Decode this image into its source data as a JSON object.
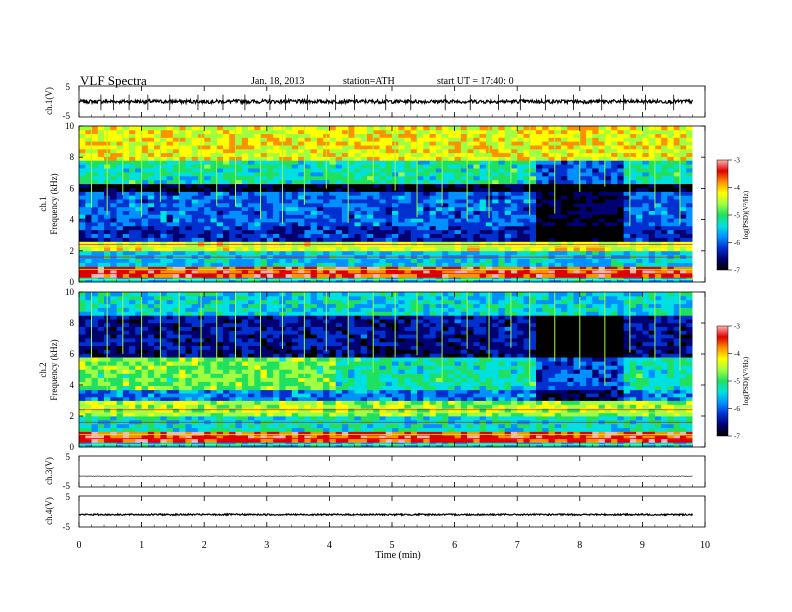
{
  "header": {
    "title": "VLF  Spectra",
    "date": "Jan. 18, 2013",
    "station": "station=ATH",
    "start": "start  UT  =    17:40: 0"
  },
  "colors": {
    "colormap": [
      "#000000",
      "#000070",
      "#0030d0",
      "#0090ff",
      "#00e0e0",
      "#20e060",
      "#a0ff40",
      "#ffff00",
      "#ff9000",
      "#e00000",
      "#ffb0b0"
    ],
    "trace": "#000000",
    "frame": "#000000",
    "background": "#ffffff"
  },
  "chart_data": [
    {
      "type": "line",
      "panel": "ch1-waveform",
      "ylabel": "ch.1(V)",
      "ylim": [
        -5,
        5
      ],
      "y_ticks": [
        "5",
        "-5"
      ],
      "trace_level": 0,
      "trace_noise_amplitude": 0.6,
      "spike_times_min": [
        0.35,
        0.55,
        0.8,
        1.1,
        1.45,
        1.9,
        2.3,
        2.65,
        3.05,
        3.3,
        3.65,
        4.1,
        4.4,
        4.9,
        5.3,
        5.85,
        6.25,
        6.7,
        7.05,
        7.45,
        7.9,
        8.35,
        8.7,
        9.05,
        9.5
      ]
    },
    {
      "type": "heatmap",
      "panel": "ch1-spectrogram",
      "ylabel": "ch.1\nFrequency  (kHz)",
      "ylim": [
        0,
        10
      ],
      "y_ticks": [
        "0",
        "2",
        "4",
        "6",
        "8",
        "10"
      ],
      "xlim": [
        0,
        9.8
      ],
      "colorbar": {
        "label": "log(PSD)(V²/Hz)",
        "range": [
          -7,
          -3
        ],
        "ticks": [
          "-3",
          "-4",
          "-5",
          "-6",
          "-7"
        ]
      },
      "bands": [
        {
          "f_from": 0,
          "f_to": 0.3,
          "level": -5.5
        },
        {
          "f_from": 0.3,
          "f_to": 1.0,
          "level": -3.6
        },
        {
          "f_from": 1.0,
          "f_to": 2.0,
          "level": -5.5
        },
        {
          "f_from": 2.0,
          "f_to": 2.6,
          "level": -4.4
        },
        {
          "f_from": 2.6,
          "f_to": 3.6,
          "level": -6.2
        },
        {
          "f_from": 3.6,
          "f_to": 5.8,
          "level": -5.9
        },
        {
          "f_from": 5.8,
          "f_to": 6.3,
          "level": -6.8
        },
        {
          "f_from": 6.3,
          "f_to": 7.8,
          "level": -5.2
        },
        {
          "f_from": 7.8,
          "f_to": 10,
          "level": -4.3
        }
      ],
      "quiet_intervals_min": [
        [
          7.3,
          8.7
        ]
      ],
      "vertical_spikes_min": [
        0.2,
        0.45,
        0.7,
        1.0,
        1.3,
        1.6,
        1.95,
        2.2,
        2.5,
        2.9,
        3.25,
        3.6,
        3.95,
        4.3,
        4.7,
        5.05,
        5.4,
        5.8,
        6.2,
        6.55,
        6.9,
        7.2,
        7.6,
        8.0,
        8.4,
        8.8,
        9.2,
        9.6
      ]
    },
    {
      "type": "heatmap",
      "panel": "ch2-spectrogram",
      "ylabel": "ch.2\nFrequency  (kHz)",
      "ylim": [
        0,
        10
      ],
      "y_ticks": [
        "0",
        "2",
        "4",
        "6",
        "8",
        "10"
      ],
      "xlim": [
        0,
        9.8
      ],
      "colorbar": {
        "label": "log(PSD)(V²/Hz)",
        "range": [
          -7,
          -3
        ],
        "ticks": [
          "-3",
          "-4",
          "-5",
          "-6",
          "-7"
        ]
      },
      "bands": [
        {
          "f_from": 0,
          "f_to": 0.3,
          "level": -5.5
        },
        {
          "f_from": 0.3,
          "f_to": 1.0,
          "level": -3.6
        },
        {
          "f_from": 1.0,
          "f_to": 2.0,
          "level": -5.3
        },
        {
          "f_from": 2.0,
          "f_to": 3.0,
          "level": -4.6
        },
        {
          "f_from": 3.0,
          "f_to": 3.7,
          "level": -5.8
        },
        {
          "f_from": 3.7,
          "f_to": 5.8,
          "level": -4.8
        },
        {
          "f_from": 5.8,
          "f_to": 6.3,
          "level": -6.5
        },
        {
          "f_from": 6.3,
          "f_to": 8.5,
          "level": -6.3
        },
        {
          "f_from": 8.5,
          "f_to": 10,
          "level": -5.4
        }
      ],
      "quiet_intervals_min": [
        [
          7.3,
          8.7
        ]
      ],
      "vertical_spikes_min": [
        0.2,
        0.45,
        0.7,
        1.0,
        1.3,
        1.6,
        1.95,
        2.2,
        2.5,
        2.9,
        3.25,
        3.6,
        3.95,
        4.3,
        4.7,
        5.05,
        5.4,
        5.8,
        6.2,
        6.55,
        6.9,
        7.2,
        7.6,
        8.0,
        8.4,
        8.8,
        9.2,
        9.6
      ]
    },
    {
      "type": "line",
      "panel": "ch3-waveform",
      "ylabel": "ch.3(V)",
      "ylim": [
        -5,
        5
      ],
      "y_ticks": [
        "5",
        "-5"
      ],
      "trace_level": -1.5,
      "trace_noise_amplitude": 0.05,
      "spike_times_min": []
    },
    {
      "type": "line",
      "panel": "ch4-waveform",
      "ylabel": "ch.4(V)",
      "ylim": [
        -5,
        5
      ],
      "y_ticks": [
        "5",
        "-5"
      ],
      "trace_level": -1.0,
      "trace_noise_amplitude": 0.25,
      "spike_times_min": []
    }
  ],
  "x_axis": {
    "label": "Time  (min)",
    "range": [
      0,
      10
    ],
    "ticks": [
      "0",
      "1",
      "2",
      "3",
      "4",
      "5",
      "6",
      "7",
      "8",
      "9",
      "10"
    ]
  }
}
